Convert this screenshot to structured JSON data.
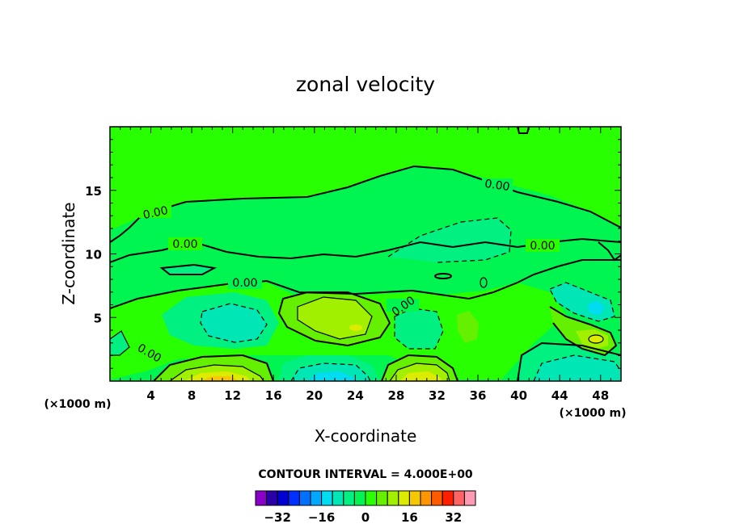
{
  "chart_data": {
    "type": "contour",
    "title": "zonal velocity",
    "xlabel": "X-coordinate",
    "ylabel": "Z-coordinate",
    "x_unit": "(×1000 m)",
    "y_unit": "(×1000 m)",
    "xlim": [
      0,
      50
    ],
    "ylim": [
      0,
      20
    ],
    "x_ticks": [
      4,
      8,
      12,
      16,
      20,
      24,
      28,
      32,
      36,
      40,
      44,
      48
    ],
    "y_ticks": [
      5,
      10,
      15
    ],
    "contour_interval_text": "CONTOUR INTERVAL = 4.000E+00",
    "contour_label": "0.00",
    "colorbar": {
      "levels": [
        -36,
        -32,
        -28,
        -24,
        -20,
        -16,
        -12,
        -8,
        -4,
        0,
        4,
        8,
        12,
        16,
        20,
        24,
        28,
        32,
        36
      ],
      "colors": [
        "#8a00c8",
        "#2a00a8",
        "#0000d2",
        "#0030ff",
        "#0070ff",
        "#00a8ff",
        "#00dcf0",
        "#00e6b4",
        "#00f082",
        "#00f550",
        "#28ff00",
        "#64f000",
        "#a0f000",
        "#dcec00",
        "#f5c800",
        "#ff9600",
        "#ff5a00",
        "#ff1e00",
        "#ff6464",
        "#ff9ab4"
      ],
      "tick_labels": [
        "−32",
        "−16",
        "0",
        "16",
        "32"
      ],
      "tick_values": [
        -32,
        -16,
        0,
        16,
        32
      ]
    },
    "features": [
      {
        "kind": "positive_max",
        "x": 10.5,
        "z": 0.3,
        "value": 18
      },
      {
        "kind": "negative_min",
        "x": 20.5,
        "z": 0.4,
        "value": -14
      },
      {
        "kind": "positive_max",
        "x": 30,
        "z": 0.4,
        "value": 16
      },
      {
        "kind": "positive_max",
        "x": 22.5,
        "z": 5,
        "value": 10
      },
      {
        "kind": "negative_min",
        "x": 11.5,
        "z": 4.5,
        "value": -8
      },
      {
        "kind": "positive_max",
        "x": 47,
        "z": 3.2,
        "value": 10
      },
      {
        "kind": "negative_min",
        "x": 28,
        "z": 11.3,
        "value": -4
      }
    ]
  }
}
